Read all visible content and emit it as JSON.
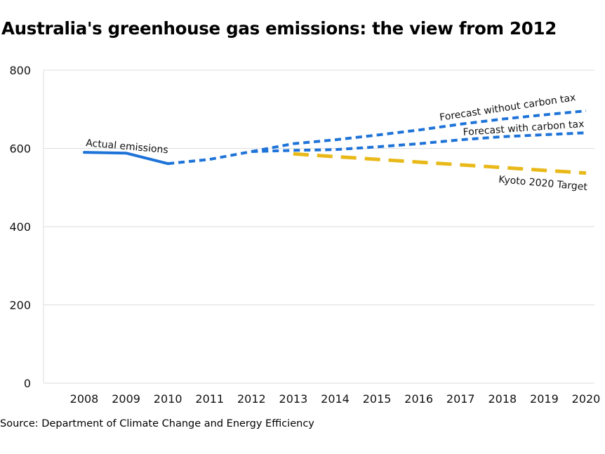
{
  "chart_data": {
    "type": "line",
    "title": "Australia's greenhouse gas emissions: the view from 2012",
    "source": "Source: Department of Climate Change and Energy Efficiency",
    "xlabel": "",
    "ylabel": "",
    "ylim": [
      0,
      800
    ],
    "yticks": [
      "0",
      "200",
      "400",
      "600",
      "800"
    ],
    "xticks": [
      "2008",
      "2009",
      "2010",
      "2011",
      "2012",
      "2013",
      "2014",
      "2015",
      "2016",
      "2017",
      "2018",
      "2019",
      "2020"
    ],
    "grid": true,
    "series": [
      {
        "name": "Actual emissions",
        "color": "#1e73d8",
        "style": "solid",
        "points": [
          [
            2008,
            590
          ],
          [
            2009,
            588
          ],
          [
            2010,
            561
          ]
        ]
      },
      {
        "name": "",
        "color": "#1e73d8",
        "style": "dotted",
        "points": [
          [
            2010,
            561
          ],
          [
            2011,
            572
          ],
          [
            2012,
            592
          ]
        ]
      },
      {
        "name": "Forecast without carbon tax",
        "color": "#1e73d8",
        "style": "dotted",
        "points": [
          [
            2012,
            592
          ],
          [
            2013,
            612
          ],
          [
            2014,
            622
          ],
          [
            2015,
            634
          ],
          [
            2016,
            647
          ],
          [
            2017,
            662
          ],
          [
            2018,
            675
          ],
          [
            2019,
            686
          ],
          [
            2020,
            696
          ]
        ]
      },
      {
        "name": "Forecast with carbon tax",
        "color": "#1e73d8",
        "style": "dotted",
        "points": [
          [
            2012,
            592
          ],
          [
            2013,
            595
          ],
          [
            2014,
            597
          ],
          [
            2015,
            604
          ],
          [
            2016,
            612
          ],
          [
            2017,
            622
          ],
          [
            2018,
            630
          ],
          [
            2019,
            635
          ],
          [
            2020,
            640
          ]
        ]
      },
      {
        "name": "Kyoto 2020 Target",
        "color": "#e8b919",
        "style": "dashed",
        "points": [
          [
            2013,
            586
          ],
          [
            2020,
            537
          ]
        ]
      }
    ]
  }
}
